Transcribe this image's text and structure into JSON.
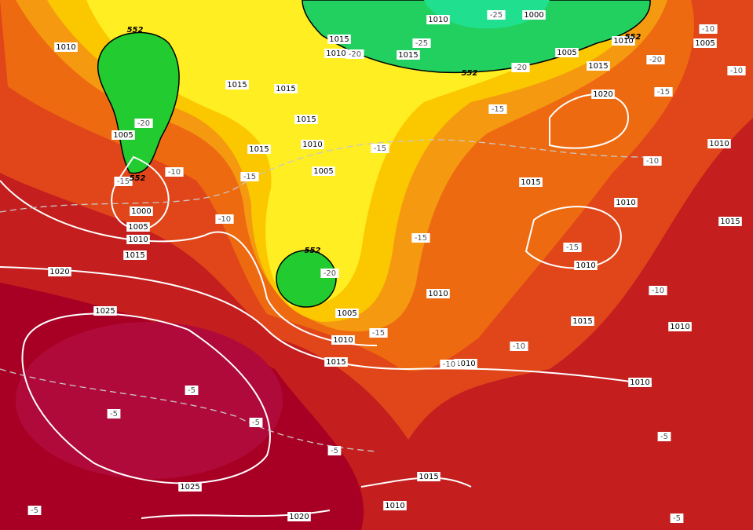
{
  "map": {
    "isobar_labels": [
      "1010",
      "1015",
      "1010",
      "1015",
      "1010",
      "1000",
      "1005",
      "1010",
      "1005",
      "1015",
      "1020",
      "1015",
      "1015",
      "1015",
      "1010",
      "1015",
      "1005",
      "1005",
      "1000",
      "1005",
      "1010",
      "1015",
      "1020",
      "1025",
      "1015",
      "1010",
      "1015",
      "1010",
      "1010",
      "1010",
      "1005",
      "1010",
      "1015",
      "1010",
      "1015",
      "1010",
      "1010",
      "1025",
      "1015",
      "1010",
      "1020"
    ],
    "thickness_labels": [
      "552",
      "552",
      "552",
      "552",
      "552"
    ],
    "temperature_labels": [
      "-25",
      "-25",
      "-20",
      "-20",
      "-20",
      "-10",
      "-10",
      "-15",
      "-15",
      "-20",
      "-10",
      "-15",
      "-15",
      "-15",
      "-10",
      "-15",
      "-15",
      "-20",
      "-10",
      "-10",
      "-15",
      "-10",
      "-10",
      "-5",
      "-5",
      "-5",
      "-5",
      "-5",
      "-5",
      "-5"
    ]
  }
}
